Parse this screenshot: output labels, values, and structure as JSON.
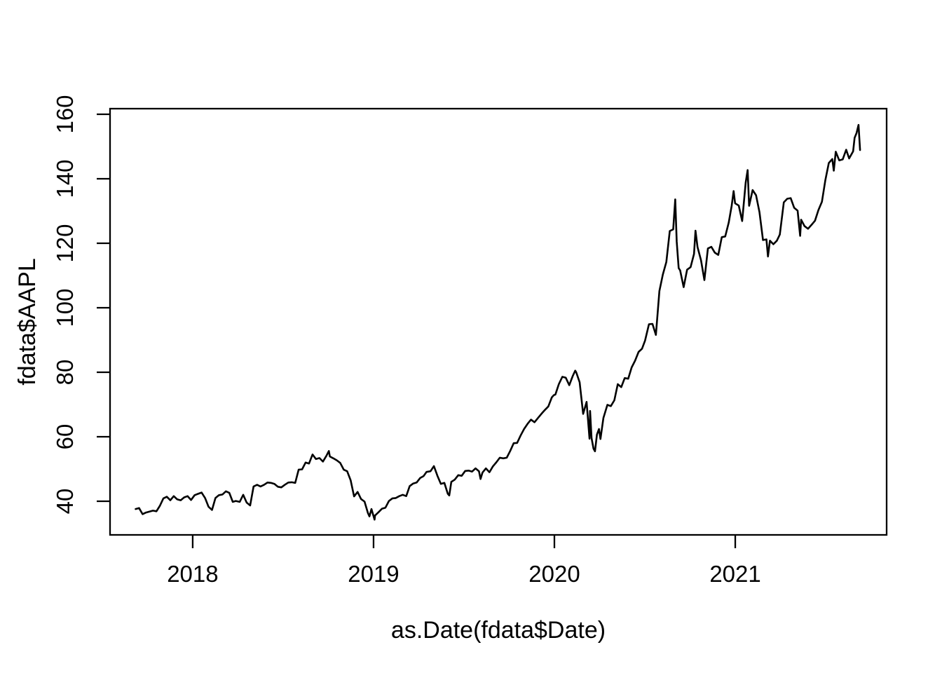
{
  "page": {
    "background_color": "#ffffff",
    "plot_type_description": "R base graphics line plot"
  },
  "chart_data": {
    "type": "line",
    "title": "",
    "xlabel": "as.Date(fdata$Date)",
    "ylabel": "fdata$AAPL",
    "grid": false,
    "legend_position": "none",
    "line_color": "#000000",
    "axis_color": "#000000",
    "x_ticks": [
      {
        "label": "2018",
        "year": 2018
      },
      {
        "label": "2019",
        "year": 2019
      },
      {
        "label": "2020",
        "year": 2020
      },
      {
        "label": "2021",
        "year": 2021
      }
    ],
    "y_ticks": [
      {
        "label": "40",
        "value": 40
      },
      {
        "label": "60",
        "value": 60
      },
      {
        "label": "80",
        "value": 80
      },
      {
        "label": "100",
        "value": 100
      },
      {
        "label": "120",
        "value": 120
      },
      {
        "label": "140",
        "value": 140
      },
      {
        "label": "160",
        "value": 160
      }
    ],
    "x_domain_years": [
      2017.543,
      2021.837
    ],
    "y_domain": [
      29.57,
      161.74
    ],
    "series": [
      {
        "name": "AAPL",
        "color": "#000000",
        "points": [
          [
            "2017-09-08",
            37.6
          ],
          [
            "2017-09-15",
            37.9
          ],
          [
            "2017-09-22",
            36.0
          ],
          [
            "2017-09-29",
            36.5
          ],
          [
            "2017-10-06",
            36.8
          ],
          [
            "2017-10-13",
            37.1
          ],
          [
            "2017-10-20",
            36.9
          ],
          [
            "2017-10-27",
            38.6
          ],
          [
            "2017-11-03",
            40.9
          ],
          [
            "2017-11-10",
            41.4
          ],
          [
            "2017-11-17",
            40.3
          ],
          [
            "2017-11-24",
            41.6
          ],
          [
            "2017-12-01",
            40.6
          ],
          [
            "2017-12-08",
            40.3
          ],
          [
            "2017-12-15",
            41.2
          ],
          [
            "2017-12-22",
            41.6
          ],
          [
            "2017-12-29",
            40.4
          ],
          [
            "2018-01-05",
            41.9
          ],
          [
            "2018-01-12",
            42.3
          ],
          [
            "2018-01-19",
            42.7
          ],
          [
            "2018-01-26",
            41.0
          ],
          [
            "2018-02-02",
            38.3
          ],
          [
            "2018-02-09",
            37.3
          ],
          [
            "2018-02-16",
            41.0
          ],
          [
            "2018-02-23",
            41.9
          ],
          [
            "2018-03-02",
            42.1
          ],
          [
            "2018-03-09",
            43.1
          ],
          [
            "2018-03-16",
            42.6
          ],
          [
            "2018-03-23",
            39.8
          ],
          [
            "2018-03-29",
            40.1
          ],
          [
            "2018-04-06",
            39.8
          ],
          [
            "2018-04-13",
            42.0
          ],
          [
            "2018-04-20",
            39.6
          ],
          [
            "2018-04-27",
            38.7
          ],
          [
            "2018-05-04",
            44.6
          ],
          [
            "2018-05-11",
            45.1
          ],
          [
            "2018-05-18",
            44.6
          ],
          [
            "2018-05-25",
            45.1
          ],
          [
            "2018-06-01",
            45.8
          ],
          [
            "2018-06-08",
            45.7
          ],
          [
            "2018-06-15",
            45.4
          ],
          [
            "2018-06-22",
            44.5
          ],
          [
            "2018-06-29",
            44.3
          ],
          [
            "2018-07-06",
            45.1
          ],
          [
            "2018-07-13",
            45.8
          ],
          [
            "2018-07-20",
            45.9
          ],
          [
            "2018-07-27",
            45.7
          ],
          [
            "2018-08-03",
            49.8
          ],
          [
            "2018-08-10",
            49.9
          ],
          [
            "2018-08-17",
            52.0
          ],
          [
            "2018-08-24",
            51.7
          ],
          [
            "2018-08-31",
            54.5
          ],
          [
            "2018-09-07",
            53.1
          ],
          [
            "2018-09-14",
            53.4
          ],
          [
            "2018-09-21",
            52.3
          ],
          [
            "2018-09-28",
            54.1
          ],
          [
            "2018-10-03",
            55.6
          ],
          [
            "2018-10-05",
            53.9
          ],
          [
            "2018-10-12",
            53.3
          ],
          [
            "2018-10-19",
            52.7
          ],
          [
            "2018-10-26",
            51.9
          ],
          [
            "2018-11-02",
            49.8
          ],
          [
            "2018-11-09",
            49.3
          ],
          [
            "2018-11-16",
            46.5
          ],
          [
            "2018-11-23",
            41.5
          ],
          [
            "2018-11-30",
            42.9
          ],
          [
            "2018-12-07",
            40.7
          ],
          [
            "2018-12-14",
            39.9
          ],
          [
            "2018-12-21",
            36.3
          ],
          [
            "2018-12-24",
            35.3
          ],
          [
            "2018-12-28",
            37.6
          ],
          [
            "2019-01-03",
            34.3
          ],
          [
            "2019-01-04",
            35.6
          ],
          [
            "2019-01-11",
            36.6
          ],
          [
            "2019-01-18",
            37.7
          ],
          [
            "2019-01-25",
            38.0
          ],
          [
            "2019-02-01",
            40.1
          ],
          [
            "2019-02-08",
            40.9
          ],
          [
            "2019-02-15",
            41.0
          ],
          [
            "2019-02-22",
            41.6
          ],
          [
            "2019-03-01",
            42.0
          ],
          [
            "2019-03-08",
            41.6
          ],
          [
            "2019-03-15",
            44.7
          ],
          [
            "2019-03-22",
            45.5
          ],
          [
            "2019-03-29",
            45.8
          ],
          [
            "2019-04-05",
            47.2
          ],
          [
            "2019-04-12",
            47.8
          ],
          [
            "2019-04-18",
            49.1
          ],
          [
            "2019-04-26",
            49.3
          ],
          [
            "2019-05-03",
            50.9
          ],
          [
            "2019-05-10",
            47.9
          ],
          [
            "2019-05-17",
            45.4
          ],
          [
            "2019-05-24",
            45.7
          ],
          [
            "2019-05-31",
            42.3
          ],
          [
            "2019-06-03",
            41.8
          ],
          [
            "2019-06-07",
            46.0
          ],
          [
            "2019-06-14",
            46.7
          ],
          [
            "2019-06-21",
            48.1
          ],
          [
            "2019-06-28",
            47.9
          ],
          [
            "2019-07-05",
            49.4
          ],
          [
            "2019-07-12",
            49.5
          ],
          [
            "2019-07-19",
            49.2
          ],
          [
            "2019-07-26",
            50.2
          ],
          [
            "2019-08-02",
            49.3
          ],
          [
            "2019-08-05",
            46.9
          ],
          [
            "2019-08-09",
            48.9
          ],
          [
            "2019-08-16",
            50.2
          ],
          [
            "2019-08-23",
            49.0
          ],
          [
            "2019-08-30",
            50.8
          ],
          [
            "2019-09-06",
            52.1
          ],
          [
            "2019-09-13",
            53.5
          ],
          [
            "2019-09-20",
            53.3
          ],
          [
            "2019-09-27",
            53.5
          ],
          [
            "2019-10-04",
            55.6
          ],
          [
            "2019-10-11",
            58.0
          ],
          [
            "2019-10-18",
            58.1
          ],
          [
            "2019-10-25",
            60.4
          ],
          [
            "2019-11-01",
            62.4
          ],
          [
            "2019-11-08",
            64.0
          ],
          [
            "2019-11-15",
            65.3
          ],
          [
            "2019-11-22",
            64.5
          ],
          [
            "2019-11-29",
            65.8
          ],
          [
            "2019-12-06",
            67.1
          ],
          [
            "2019-12-13",
            68.3
          ],
          [
            "2019-12-20",
            69.4
          ],
          [
            "2019-12-27",
            72.2
          ],
          [
            "2019-12-31",
            72.9
          ],
          [
            "2020-01-03",
            73.1
          ],
          [
            "2020-01-10",
            76.3
          ],
          [
            "2020-01-17",
            78.6
          ],
          [
            "2020-01-24",
            78.3
          ],
          [
            "2020-01-31",
            76.0
          ],
          [
            "2020-02-07",
            78.8
          ],
          [
            "2020-02-12",
            80.5
          ],
          [
            "2020-02-14",
            80.0
          ],
          [
            "2020-02-21",
            76.9
          ],
          [
            "2020-02-28",
            67.1
          ],
          [
            "2020-03-06",
            70.8
          ],
          [
            "2020-03-12",
            59.4
          ],
          [
            "2020-03-13",
            68.0
          ],
          [
            "2020-03-16",
            59.6
          ],
          [
            "2020-03-20",
            56.3
          ],
          [
            "2020-03-23",
            55.5
          ],
          [
            "2020-03-27",
            60.7
          ],
          [
            "2020-03-31",
            62.4
          ],
          [
            "2020-04-03",
            59.3
          ],
          [
            "2020-04-09",
            65.8
          ],
          [
            "2020-04-17",
            69.9
          ],
          [
            "2020-04-24",
            69.5
          ],
          [
            "2020-05-01",
            71.3
          ],
          [
            "2020-05-08",
            76.3
          ],
          [
            "2020-05-15",
            75.4
          ],
          [
            "2020-05-22",
            78.2
          ],
          [
            "2020-05-29",
            78.0
          ],
          [
            "2020-06-05",
            81.5
          ],
          [
            "2020-06-12",
            83.6
          ],
          [
            "2020-06-19",
            86.3
          ],
          [
            "2020-06-26",
            87.3
          ],
          [
            "2020-07-02",
            89.8
          ],
          [
            "2020-07-10",
            94.9
          ],
          [
            "2020-07-17",
            95.0
          ],
          [
            "2020-07-24",
            91.6
          ],
          [
            "2020-07-31",
            105.2
          ],
          [
            "2020-08-07",
            110.3
          ],
          [
            "2020-08-14",
            114.2
          ],
          [
            "2020-08-21",
            123.8
          ],
          [
            "2020-08-28",
            124.3
          ],
          [
            "2020-09-01",
            133.6
          ],
          [
            "2020-09-04",
            120.5
          ],
          [
            "2020-09-08",
            112.3
          ],
          [
            "2020-09-11",
            111.6
          ],
          [
            "2020-09-18",
            106.4
          ],
          [
            "2020-09-25",
            111.8
          ],
          [
            "2020-10-02",
            112.6
          ],
          [
            "2020-10-09",
            116.7
          ],
          [
            "2020-10-12",
            123.9
          ],
          [
            "2020-10-16",
            118.8
          ],
          [
            "2020-10-23",
            114.8
          ],
          [
            "2020-10-30",
            108.6
          ],
          [
            "2020-11-06",
            118.4
          ],
          [
            "2020-11-13",
            118.9
          ],
          [
            "2020-11-20",
            117.1
          ],
          [
            "2020-11-27",
            116.4
          ],
          [
            "2020-12-04",
            121.9
          ],
          [
            "2020-12-11",
            122.1
          ],
          [
            "2020-12-18",
            126.4
          ],
          [
            "2020-12-24",
            131.6
          ],
          [
            "2020-12-28",
            136.2
          ],
          [
            "2020-12-31",
            132.4
          ],
          [
            "2021-01-08",
            131.7
          ],
          [
            "2021-01-15",
            126.9
          ],
          [
            "2021-01-22",
            138.8
          ],
          [
            "2021-01-26",
            142.7
          ],
          [
            "2021-01-29",
            131.6
          ],
          [
            "2021-02-05",
            136.5
          ],
          [
            "2021-02-12",
            134.9
          ],
          [
            "2021-02-19",
            129.6
          ],
          [
            "2021-02-26",
            121.0
          ],
          [
            "2021-03-05",
            121.2
          ],
          [
            "2021-03-08",
            115.9
          ],
          [
            "2021-03-12",
            120.8
          ],
          [
            "2021-03-19",
            119.7
          ],
          [
            "2021-03-26",
            120.8
          ],
          [
            "2021-04-01",
            122.7
          ],
          [
            "2021-04-09",
            132.7
          ],
          [
            "2021-04-16",
            133.8
          ],
          [
            "2021-04-23",
            134.0
          ],
          [
            "2021-04-30",
            131.0
          ],
          [
            "2021-05-07",
            130.1
          ],
          [
            "2021-05-12",
            122.3
          ],
          [
            "2021-05-14",
            127.3
          ],
          [
            "2021-05-21",
            125.3
          ],
          [
            "2021-05-28",
            124.5
          ],
          [
            "2021-06-04",
            125.7
          ],
          [
            "2021-06-11",
            127.0
          ],
          [
            "2021-06-18",
            130.3
          ],
          [
            "2021-06-25",
            132.9
          ],
          [
            "2021-07-02",
            139.6
          ],
          [
            "2021-07-09",
            144.9
          ],
          [
            "2021-07-16",
            146.1
          ],
          [
            "2021-07-19",
            142.5
          ],
          [
            "2021-07-23",
            148.4
          ],
          [
            "2021-07-30",
            145.7
          ],
          [
            "2021-08-06",
            146.0
          ],
          [
            "2021-08-13",
            149.0
          ],
          [
            "2021-08-19",
            146.3
          ],
          [
            "2021-08-27",
            148.5
          ],
          [
            "2021-08-30",
            152.7
          ],
          [
            "2021-09-03",
            154.2
          ],
          [
            "2021-09-07",
            156.7
          ],
          [
            "2021-09-10",
            148.9
          ]
        ]
      }
    ]
  }
}
